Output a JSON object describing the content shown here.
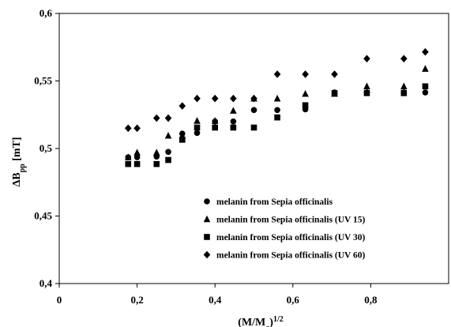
{
  "chart_data": {
    "type": "scatter",
    "xlabel": {
      "base": "(M/M",
      "sub": "o",
      "close": ")",
      "sup": "1/2"
    },
    "ylabel": {
      "delta": "Δ",
      "base": "B",
      "sub": "pp",
      "unit": " [mT]"
    },
    "xlim": [
      0,
      1.0
    ],
    "ylim": [
      0.4,
      0.6
    ],
    "xticks": [
      0,
      0.2,
      0.4,
      0.6,
      0.8
    ],
    "xtick_labels": [
      "0",
      "0,2",
      "0,4",
      "0,6",
      "0,8"
    ],
    "yticks": [
      0.4,
      0.45,
      0.5,
      0.55,
      0.6
    ],
    "ytick_labels": [
      "0,4",
      "0,45",
      "0,5",
      "0,55",
      "0,6"
    ],
    "grid": false,
    "legend_position": "bottom-right inside plot",
    "series": [
      {
        "name": "melanin from Sepia officinalis",
        "marker": "circle",
        "color": "#000000",
        "x": [
          0.177,
          0.2,
          0.25,
          0.28,
          0.316,
          0.354,
          0.4,
          0.447,
          0.5,
          0.56,
          0.632,
          0.707,
          0.79,
          0.885,
          0.94
        ],
        "y": [
          0.4935,
          0.4935,
          0.494,
          0.4975,
          0.511,
          0.5115,
          0.52,
          0.52,
          0.5285,
          0.5285,
          0.529,
          0.5415,
          0.5415,
          0.5415,
          0.5415
        ]
      },
      {
        "name": "melanin from Sepia officinalis (UV 15)",
        "marker": "triangle",
        "color": "#000000",
        "x": [
          0.177,
          0.2,
          0.25,
          0.28,
          0.316,
          0.354,
          0.4,
          0.447,
          0.5,
          0.56,
          0.632,
          0.707,
          0.79,
          0.885,
          0.94
        ],
        "y": [
          0.4935,
          0.497,
          0.497,
          0.5095,
          0.5095,
          0.5205,
          0.5205,
          0.528,
          0.537,
          0.537,
          0.5405,
          0.5405,
          0.546,
          0.546,
          0.559
        ]
      },
      {
        "name": "melanin from Sepia officinalis (UV 30)",
        "marker": "square",
        "color": "#000000",
        "x": [
          0.177,
          0.2,
          0.25,
          0.28,
          0.316,
          0.354,
          0.4,
          0.447,
          0.5,
          0.56,
          0.632,
          0.707,
          0.79,
          0.885,
          0.94
        ],
        "y": [
          0.4885,
          0.4885,
          0.4885,
          0.4915,
          0.5065,
          0.5155,
          0.5155,
          0.5155,
          0.5155,
          0.523,
          0.532,
          0.541,
          0.541,
          0.541,
          0.546
        ]
      },
      {
        "name": "melanin from Sepia officinalis (UV 60)",
        "marker": "diamond",
        "color": "#000000",
        "x": [
          0.177,
          0.2,
          0.25,
          0.28,
          0.316,
          0.354,
          0.4,
          0.447,
          0.5,
          0.56,
          0.632,
          0.707,
          0.79,
          0.885,
          0.94
        ],
        "y": [
          0.515,
          0.515,
          0.5225,
          0.5225,
          0.5315,
          0.537,
          0.537,
          0.537,
          0.537,
          0.555,
          0.555,
          0.555,
          0.5665,
          0.5665,
          0.5715
        ]
      }
    ]
  }
}
